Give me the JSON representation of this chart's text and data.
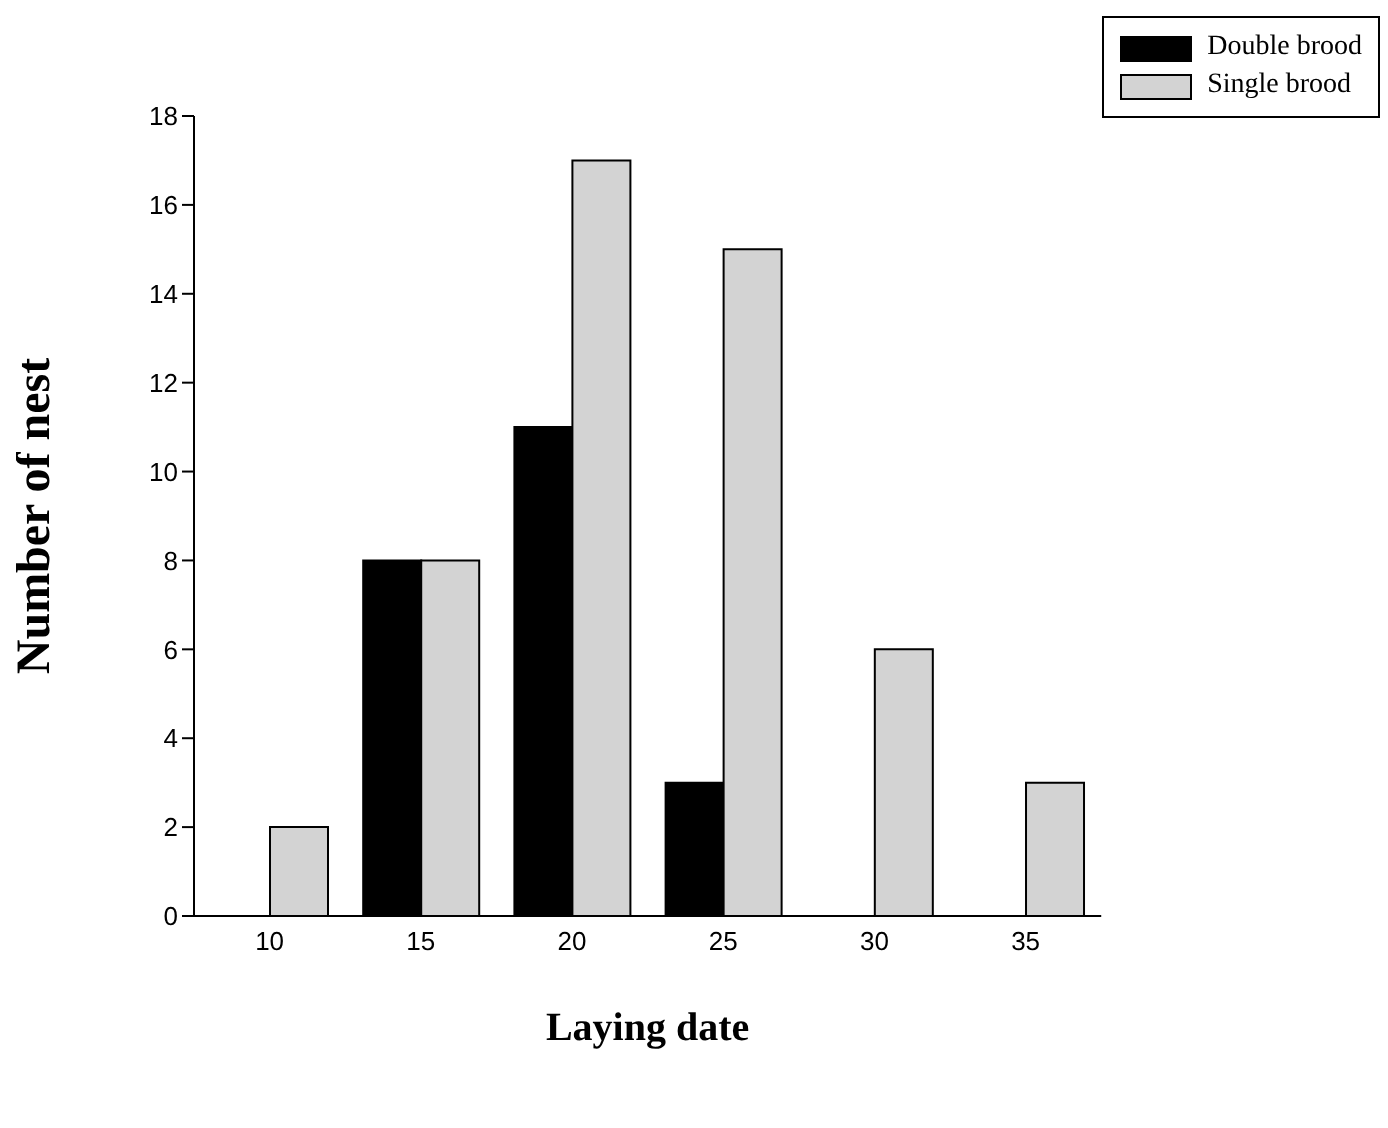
{
  "chart_data": {
    "type": "bar",
    "xlabel": "Laying date",
    "ylabel": "Number of nest",
    "categories": [
      "10",
      "15",
      "20",
      "25",
      "30",
      "35"
    ],
    "series": [
      {
        "name": "Double brood",
        "color": "#000000",
        "values": [
          0,
          8,
          11,
          3,
          0,
          0
        ]
      },
      {
        "name": "Single brood",
        "color": "#d3d3d3",
        "values": [
          2,
          8,
          17,
          15,
          6,
          3
        ]
      }
    ],
    "ylim": [
      0,
      18
    ],
    "yticks": [
      0,
      2,
      4,
      6,
      8,
      10,
      12,
      14,
      16,
      18
    ],
    "grid": false,
    "legend": "top right"
  }
}
